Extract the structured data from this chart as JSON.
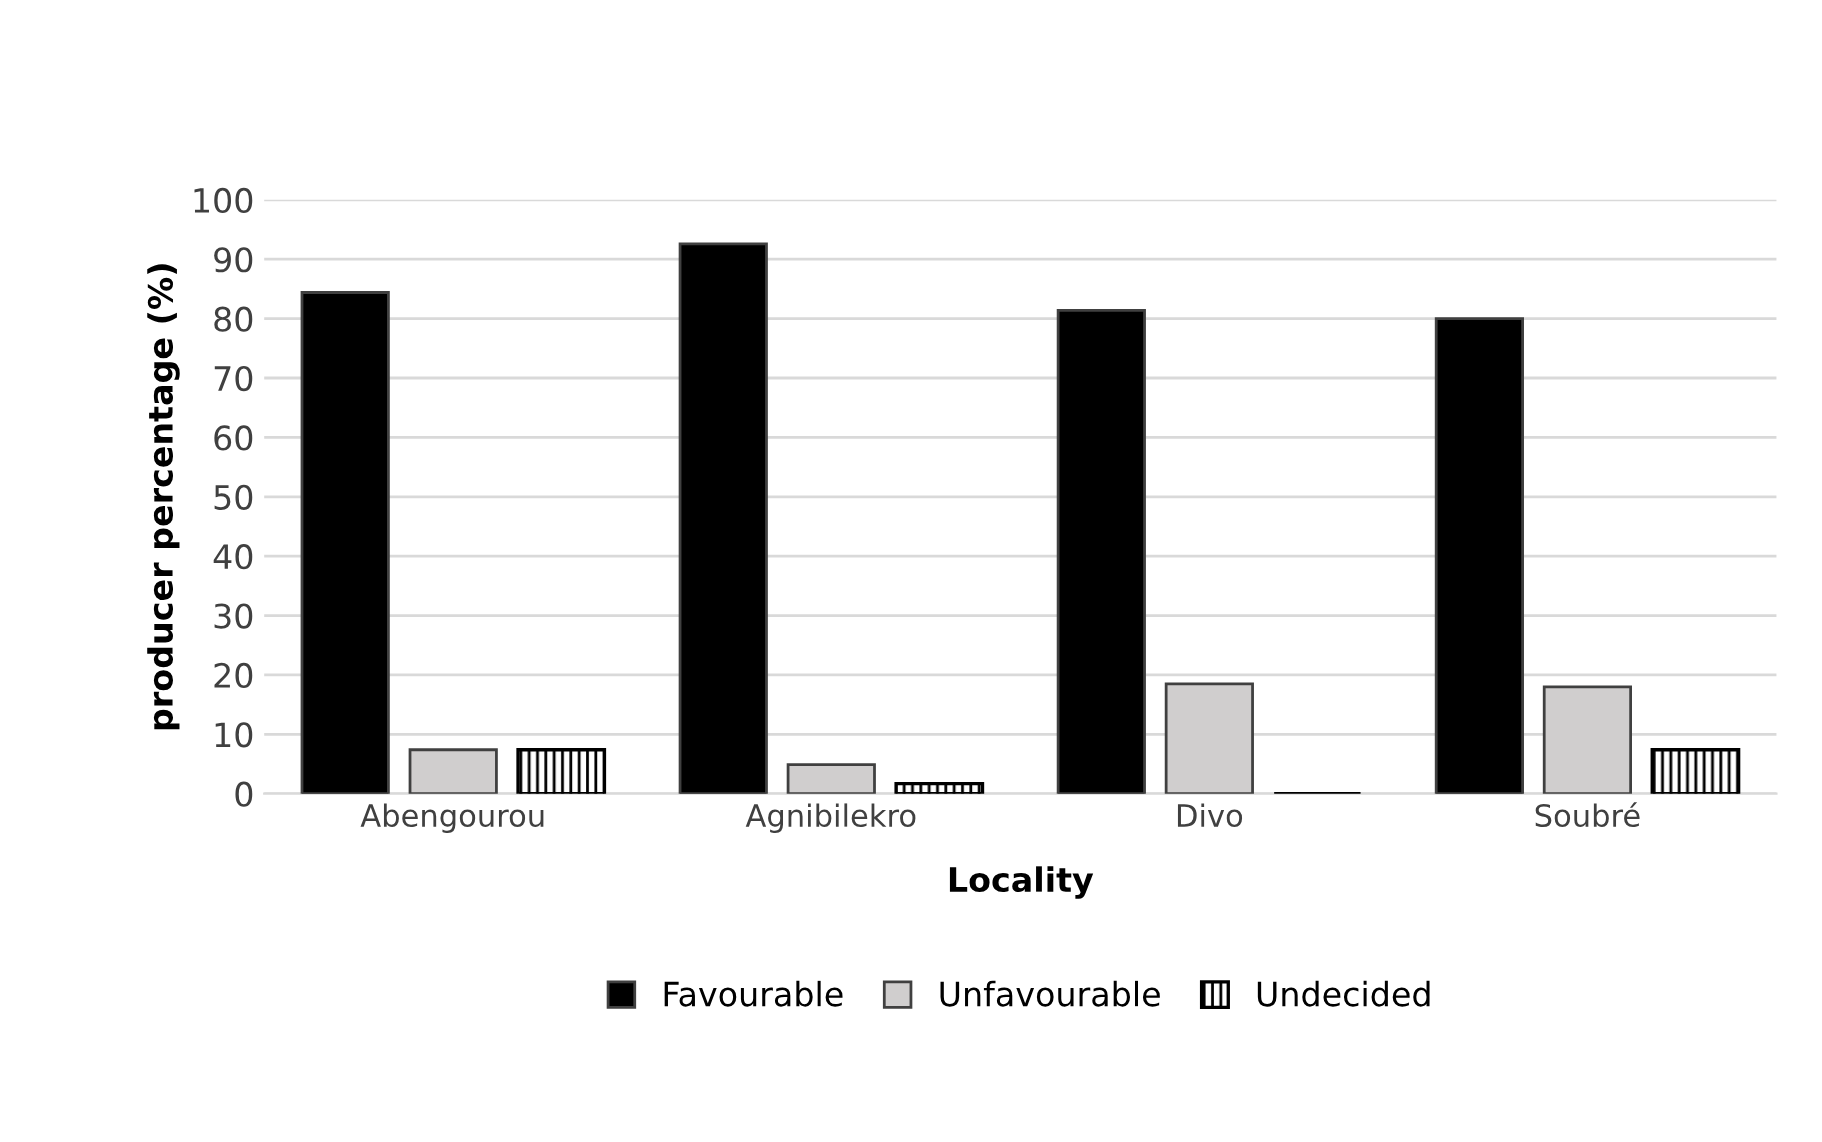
{
  "chart_data": {
    "type": "bar",
    "xlabel": "Locality",
    "ylabel": "producer percentage (%)",
    "categories": [
      "Abengourou",
      "Agnibilekro",
      "Divo",
      "Soubré"
    ],
    "series": [
      {
        "name": "Favourable",
        "color": "#000000",
        "values": [
          84.4,
          92.6,
          81.4,
          80.0
        ]
      },
      {
        "name": "Unfavourable",
        "color": "#d0cece",
        "values": [
          7.4,
          4.9,
          18.5,
          18.0
        ]
      },
      {
        "name": "Undecided",
        "color": "#000000",
        "values": [
          7.4,
          1.7,
          0,
          7.4
        ]
      }
    ],
    "ylim": [
      0,
      100
    ],
    "yticks": [
      0,
      10,
      20,
      30,
      40,
      50,
      60,
      70,
      80,
      90,
      100
    ],
    "grid": "y",
    "legend": "bottom"
  }
}
